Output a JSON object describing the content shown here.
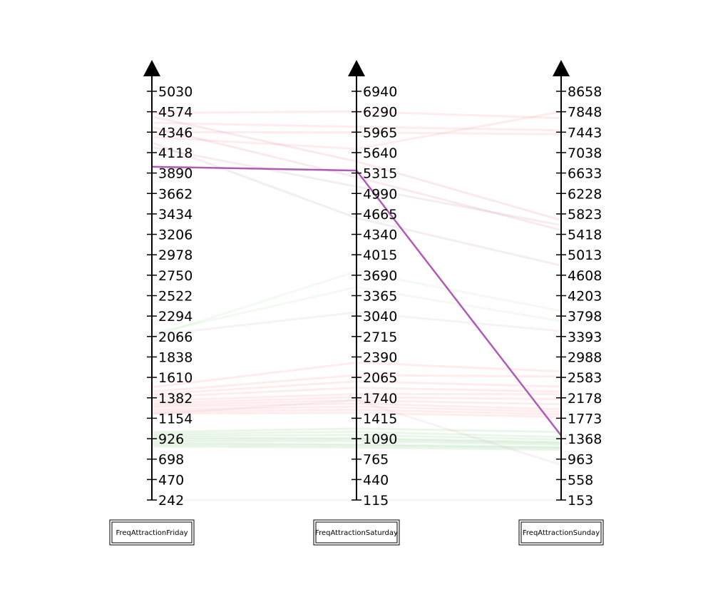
{
  "chart_data": {
    "type": "parallel-coordinates",
    "axes": [
      {
        "name": "FreqAttractionFriday",
        "ticks": [
          "242",
          "470",
          "698",
          "926",
          "1154",
          "1382",
          "1610",
          "1838",
          "2066",
          "2294",
          "2522",
          "2750",
          "2978",
          "3206",
          "3434",
          "3662",
          "3890",
          "4118",
          "4346",
          "4574",
          "5030"
        ],
        "range": [
          242,
          5030
        ]
      },
      {
        "name": "FreqAttractionSaturday",
        "ticks": [
          "115",
          "440",
          "765",
          "1090",
          "1415",
          "1740",
          "2065",
          "2390",
          "2715",
          "3040",
          "3365",
          "3690",
          "4015",
          "4340",
          "4665",
          "4990",
          "5315",
          "5640",
          "5965",
          "6290",
          "6940"
        ],
        "range": [
          115,
          6940
        ]
      },
      {
        "name": "FreqAttractionSunday",
        "ticks": [
          "153",
          "558",
          "963",
          "1368",
          "1773",
          "2178",
          "2583",
          "2988",
          "3393",
          "3798",
          "4203",
          "4608",
          "5013",
          "5418",
          "5823",
          "6228",
          "6633",
          "7038",
          "7443",
          "7848",
          "8658"
        ],
        "range": [
          153,
          8658
        ]
      }
    ],
    "highlighted_series": {
      "color": "#a040a8",
      "values": [
        3960,
        5355,
        1430
      ]
    },
    "background_lines": [
      {
        "color": "#ff9b9b",
        "values": [
          4560,
          6300,
          7720
        ]
      },
      {
        "color": "#ff9b9b",
        "values": [
          4450,
          6050,
          7480
        ]
      },
      {
        "color": "#ff9b9b",
        "values": [
          4346,
          5960,
          7400
        ]
      },
      {
        "color": "#ff9b9b",
        "values": [
          4290,
          5700,
          7850
        ]
      },
      {
        "color": "#d98c9a",
        "values": [
          4520,
          5500,
          5700
        ]
      },
      {
        "color": "#d98c9a",
        "values": [
          4400,
          5250,
          5500
        ]
      },
      {
        "color": "#c79aab",
        "values": [
          4230,
          4600,
          4800
        ]
      },
      {
        "color": "#c79aab",
        "values": [
          4180,
          5100,
          5600
        ]
      },
      {
        "color": "#b9e6b9",
        "values": [
          2066,
          3750,
          3900
        ]
      },
      {
        "color": "#b9e6b9",
        "values": [
          2100,
          3500,
          3700
        ]
      },
      {
        "color": "#d9b9c6",
        "values": [
          2080,
          3100,
          3500
        ]
      },
      {
        "color": "#ff9b9b",
        "values": [
          1500,
          2300,
          2700
        ]
      },
      {
        "color": "#ff9b9b",
        "values": [
          1450,
          2100,
          2600
        ]
      },
      {
        "color": "#ff9b9b",
        "values": [
          1420,
          2000,
          2400
        ]
      },
      {
        "color": "#ff9b9b",
        "values": [
          1390,
          1900,
          2300
        ]
      },
      {
        "color": "#ff9b9b",
        "values": [
          1350,
          1800,
          2250
        ]
      },
      {
        "color": "#ff9b9b",
        "values": [
          1320,
          1750,
          2150
        ]
      },
      {
        "color": "#ff9b9b",
        "values": [
          1300,
          1700,
          2050
        ]
      },
      {
        "color": "#ff9b9b",
        "values": [
          1280,
          1650,
          1950
        ]
      },
      {
        "color": "#ff9b9b",
        "values": [
          1250,
          1600,
          1900
        ]
      },
      {
        "color": "#ff9b9b",
        "values": [
          1230,
          1550,
          1850
        ]
      },
      {
        "color": "#ff9b9b",
        "values": [
          1210,
          1500,
          1800
        ]
      },
      {
        "color": "#d9b9c6",
        "values": [
          1200,
          1700,
          850
        ]
      },
      {
        "color": "#8fcc8f",
        "values": [
          1000,
          1250,
          1500
        ]
      },
      {
        "color": "#8fcc8f",
        "values": [
          980,
          1200,
          1400
        ]
      },
      {
        "color": "#8fcc8f",
        "values": [
          960,
          1150,
          1350
        ]
      },
      {
        "color": "#8fcc8f",
        "values": [
          940,
          1100,
          1300
        ]
      },
      {
        "color": "#8fcc8f",
        "values": [
          920,
          1080,
          1280
        ]
      },
      {
        "color": "#8fcc8f",
        "values": [
          900,
          1050,
          1250
        ]
      },
      {
        "color": "#8fcc8f",
        "values": [
          880,
          1000,
          1200
        ]
      },
      {
        "color": "#8fcc8f",
        "values": [
          860,
          980,
          1180
        ]
      },
      {
        "color": "#8fcc8f",
        "values": [
          840,
          950,
          1150
        ]
      },
      {
        "color": "#c8c8f0",
        "values": [
          242,
          115,
          153
        ]
      }
    ]
  }
}
